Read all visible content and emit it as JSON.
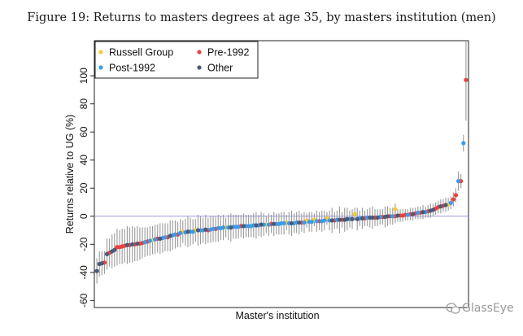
{
  "figure_title": "Figure 19: Returns to masters degrees at age 35, by masters institution (men)",
  "watermark": "GlassEye",
  "chart_data": {
    "type": "scatter",
    "title": "Figure 19: Returns to masters degrees at age 35, by masters institution (men)",
    "xlabel": "Master's institution",
    "ylabel": "Returns relative to UG (%)",
    "ylim": [
      -65,
      125
    ],
    "yticks": [
      "-60",
      "-40",
      "-20",
      "0",
      "20",
      "40",
      "60",
      "80",
      "100"
    ],
    "yticks_values": [
      -60,
      -40,
      -20,
      0,
      20,
      40,
      60,
      80,
      100
    ],
    "reference_line_y": 0,
    "grid": false,
    "legend_position": "top-left",
    "error_bars": true,
    "legend": [
      {
        "name": "Russell Group",
        "color": "#f5cc3c"
      },
      {
        "name": "Pre-1992",
        "color": "#e8413e"
      },
      {
        "name": "Post-1992",
        "color": "#3d9ae8"
      },
      {
        "name": "Other",
        "color": "#4a5a78"
      }
    ],
    "series": [
      {
        "name": "Russell Group",
        "color": "#f5cc3c",
        "points": [
          {
            "x": 8,
            "y": 8.5,
            "lo": 4,
            "hi": 13
          },
          {
            "x": 29,
            "y": 5,
            "lo": 1,
            "hi": 9
          },
          {
            "x": 45,
            "y": 1.5,
            "lo": -3,
            "hi": 6
          },
          {
            "x": 56,
            "y": -1.5,
            "lo": -6,
            "hi": 3
          },
          {
            "x": 61,
            "y": -2.5,
            "lo": -7,
            "hi": 2
          },
          {
            "x": 64,
            "y": -3,
            "lo": -8,
            "hi": 2
          },
          {
            "x": 72,
            "y": -4.5,
            "lo": -10,
            "hi": 1
          },
          {
            "x": 80,
            "y": -6,
            "lo": -12,
            "hi": 0
          },
          {
            "x": 96,
            "y": -8,
            "lo": -15,
            "hi": -1
          },
          {
            "x": 108,
            "y": -10,
            "lo": -18,
            "hi": -2
          },
          {
            "x": 113,
            "y": -11,
            "lo": -19,
            "hi": -3
          },
          {
            "x": 125,
            "y": -17,
            "lo": -27,
            "hi": -7
          }
        ]
      },
      {
        "name": "Pre-1992",
        "color": "#e8413e",
        "points": [
          {
            "x": 1,
            "y": 97,
            "lo": 68,
            "hi": 126
          },
          {
            "x": 3,
            "y": 25,
            "lo": 20,
            "hi": 30
          },
          {
            "x": 5,
            "y": 15,
            "lo": 10,
            "hi": 20
          },
          {
            "x": 6,
            "y": 12,
            "lo": 7,
            "hi": 17
          },
          {
            "x": 10,
            "y": 7.5,
            "lo": 3,
            "hi": 12
          },
          {
            "x": 12,
            "y": 6.5,
            "lo": 2,
            "hi": 11
          },
          {
            "x": 13,
            "y": 5.5,
            "lo": 1,
            "hi": 10
          },
          {
            "x": 16,
            "y": 3.5,
            "lo": -1,
            "hi": 8
          },
          {
            "x": 19,
            "y": 2.5,
            "lo": -2,
            "hi": 7
          },
          {
            "x": 21,
            "y": 2,
            "lo": -2,
            "hi": 6
          },
          {
            "x": 23,
            "y": 1.5,
            "lo": -3,
            "hi": 6
          },
          {
            "x": 25,
            "y": 1,
            "lo": -3,
            "hi": 5
          },
          {
            "x": 26,
            "y": 0.5,
            "lo": -4,
            "hi": 5
          },
          {
            "x": 27,
            "y": 0.5,
            "lo": -4,
            "hi": 5
          },
          {
            "x": 29,
            "y": 0,
            "lo": -5,
            "hi": 5
          },
          {
            "x": 31,
            "y": 0,
            "lo": -6,
            "hi": 6
          },
          {
            "x": 34,
            "y": -0.5,
            "lo": -6,
            "hi": 5
          },
          {
            "x": 37,
            "y": -1,
            "lo": -7,
            "hi": 5
          },
          {
            "x": 41,
            "y": -1.5,
            "lo": -7,
            "hi": 4
          },
          {
            "x": 50,
            "y": -2.5,
            "lo": -8,
            "hi": 3
          },
          {
            "x": 53,
            "y": -3,
            "lo": -9,
            "hi": 3
          },
          {
            "x": 59,
            "y": -3.5,
            "lo": -10,
            "hi": 3
          },
          {
            "x": 66,
            "y": -4.5,
            "lo": -11,
            "hi": 2
          },
          {
            "x": 78,
            "y": -5.5,
            "lo": -12,
            "hi": 1
          },
          {
            "x": 90,
            "y": -7,
            "lo": -15,
            "hi": 1
          },
          {
            "x": 100,
            "y": -9,
            "lo": -18,
            "hi": 0
          },
          {
            "x": 103,
            "y": -10,
            "lo": -19,
            "hi": -1
          },
          {
            "x": 115,
            "y": -13,
            "lo": -22,
            "hi": -4
          },
          {
            "x": 119,
            "y": -15,
            "lo": -25,
            "hi": -5
          },
          {
            "x": 123,
            "y": -16,
            "lo": -26,
            "hi": -6
          },
          {
            "x": 127,
            "y": -18,
            "lo": -28,
            "hi": -8
          },
          {
            "x": 129,
            "y": -19,
            "lo": -30,
            "hi": -8
          },
          {
            "x": 130,
            "y": -19.5,
            "lo": -31,
            "hi": -8
          },
          {
            "x": 132,
            "y": -20,
            "lo": -32,
            "hi": -8
          },
          {
            "x": 134,
            "y": -20.5,
            "lo": -33,
            "hi": -8
          },
          {
            "x": 136,
            "y": -21,
            "lo": -33,
            "hi": -9
          },
          {
            "x": 137,
            "y": -21.5,
            "lo": -34,
            "hi": -9
          },
          {
            "x": 138,
            "y": -22,
            "lo": -34,
            "hi": -10
          },
          {
            "x": 139,
            "y": -22,
            "lo": -35,
            "hi": -9
          },
          {
            "x": 142,
            "y": -26,
            "lo": -36,
            "hi": -16
          },
          {
            "x": 144,
            "y": -33,
            "lo": -41,
            "hi": -25
          }
        ]
      },
      {
        "name": "Post-1992",
        "color": "#3d9ae8",
        "points": [
          {
            "x": 2,
            "y": 52,
            "lo": 46,
            "hi": 58
          },
          {
            "x": 4,
            "y": 25,
            "lo": 18,
            "hi": 32
          },
          {
            "x": 7,
            "y": 9.5,
            "lo": 5,
            "hi": 14
          },
          {
            "x": 17,
            "y": 3,
            "lo": -1,
            "hi": 7
          },
          {
            "x": 20,
            "y": 2.5,
            "lo": -2,
            "hi": 7
          },
          {
            "x": 24,
            "y": 1,
            "lo": -3,
            "hi": 5
          },
          {
            "x": 30,
            "y": 0,
            "lo": -6,
            "hi": 6
          },
          {
            "x": 35,
            "y": -0.5,
            "lo": -6,
            "hi": 5
          },
          {
            "x": 40,
            "y": -1,
            "lo": -7,
            "hi": 5
          },
          {
            "x": 43,
            "y": -1.5,
            "lo": -7,
            "hi": 4
          },
          {
            "x": 47,
            "y": -2,
            "lo": -8,
            "hi": 4
          },
          {
            "x": 52,
            "y": -2.5,
            "lo": -9,
            "hi": 4
          },
          {
            "x": 55,
            "y": -3,
            "lo": -10,
            "hi": 4
          },
          {
            "x": 57,
            "y": -3,
            "lo": -10,
            "hi": 4
          },
          {
            "x": 58,
            "y": -3.5,
            "lo": -11,
            "hi": 4
          },
          {
            "x": 60,
            "y": -3.5,
            "lo": -11,
            "hi": 4
          },
          {
            "x": 62,
            "y": -4,
            "lo": -11,
            "hi": 3
          },
          {
            "x": 63,
            "y": -4,
            "lo": -11,
            "hi": 3
          },
          {
            "x": 65,
            "y": -4.5,
            "lo": -12,
            "hi": 3
          },
          {
            "x": 68,
            "y": -4.5,
            "lo": -12,
            "hi": 3
          },
          {
            "x": 69,
            "y": -5,
            "lo": -12,
            "hi": 2
          },
          {
            "x": 71,
            "y": -5,
            "lo": -13,
            "hi": 3
          },
          {
            "x": 73,
            "y": -5,
            "lo": -13,
            "hi": 3
          },
          {
            "x": 74,
            "y": -5,
            "lo": -13,
            "hi": 3
          },
          {
            "x": 75,
            "y": -5.5,
            "lo": -13,
            "hi": 2
          },
          {
            "x": 76,
            "y": -5.5,
            "lo": -13,
            "hi": 2
          },
          {
            "x": 79,
            "y": -6,
            "lo": -14,
            "hi": 2
          },
          {
            "x": 81,
            "y": -6,
            "lo": -14,
            "hi": 2
          },
          {
            "x": 83,
            "y": -6.5,
            "lo": -14,
            "hi": 1
          },
          {
            "x": 85,
            "y": -6.5,
            "lo": -15,
            "hi": 2
          },
          {
            "x": 86,
            "y": -7,
            "lo": -15,
            "hi": 1
          },
          {
            "x": 87,
            "y": -7,
            "lo": -15,
            "hi": 1
          },
          {
            "x": 88,
            "y": -7,
            "lo": -15,
            "hi": 1
          },
          {
            "x": 91,
            "y": -7.5,
            "lo": -16,
            "hi": 1
          },
          {
            "x": 92,
            "y": -7.5,
            "lo": -16,
            "hi": 1
          },
          {
            "x": 93,
            "y": -7.5,
            "lo": -16,
            "hi": 1
          },
          {
            "x": 95,
            "y": -8,
            "lo": -17,
            "hi": 1
          },
          {
            "x": 97,
            "y": -8,
            "lo": -17,
            "hi": 1
          },
          {
            "x": 98,
            "y": -8.5,
            "lo": -17,
            "hi": 0
          },
          {
            "x": 99,
            "y": -8.5,
            "lo": -18,
            "hi": 1
          },
          {
            "x": 101,
            "y": -9,
            "lo": -18,
            "hi": 0
          },
          {
            "x": 102,
            "y": -9.5,
            "lo": -19,
            "hi": 0
          },
          {
            "x": 105,
            "y": -10,
            "lo": -19,
            "hi": -1
          },
          {
            "x": 106,
            "y": -10,
            "lo": -20,
            "hi": 0
          },
          {
            "x": 109,
            "y": -11,
            "lo": -20,
            "hi": -2
          },
          {
            "x": 110,
            "y": -11,
            "lo": -21,
            "hi": -1
          },
          {
            "x": 112,
            "y": -11.5,
            "lo": -21,
            "hi": -2
          },
          {
            "x": 114,
            "y": -12,
            "lo": -22,
            "hi": -2
          },
          {
            "x": 116,
            "y": -13,
            "lo": -23,
            "hi": -3
          },
          {
            "x": 117,
            "y": -13.5,
            "lo": -24,
            "hi": -3
          },
          {
            "x": 120,
            "y": -15,
            "lo": -25,
            "hi": -5
          },
          {
            "x": 121,
            "y": -15.5,
            "lo": -26,
            "hi": -5
          },
          {
            "x": 124,
            "y": -16.5,
            "lo": -27,
            "hi": -6
          },
          {
            "x": 126,
            "y": -17.5,
            "lo": -28,
            "hi": -7
          },
          {
            "x": 128,
            "y": -18.5,
            "lo": -29,
            "hi": -8
          }
        ]
      },
      {
        "name": "Other",
        "color": "#4a5a78",
        "points": [
          {
            "x": 9,
            "y": 8,
            "lo": 3,
            "hi": 13
          },
          {
            "x": 11,
            "y": 7,
            "lo": 2,
            "hi": 12
          },
          {
            "x": 14,
            "y": 4.5,
            "lo": 0,
            "hi": 9
          },
          {
            "x": 15,
            "y": 4,
            "lo": -1,
            "hi": 9
          },
          {
            "x": 18,
            "y": 3,
            "lo": -2,
            "hi": 8
          },
          {
            "x": 22,
            "y": 1.5,
            "lo": -3,
            "hi": 6
          },
          {
            "x": 28,
            "y": 0.5,
            "lo": -4,
            "hi": 5
          },
          {
            "x": 32,
            "y": 0,
            "lo": -7,
            "hi": 7
          },
          {
            "x": 33,
            "y": -0.5,
            "lo": -8,
            "hi": 7
          },
          {
            "x": 36,
            "y": -1,
            "lo": -7,
            "hi": 5
          },
          {
            "x": 38,
            "y": -1,
            "lo": -9,
            "hi": 7
          },
          {
            "x": 39,
            "y": -1,
            "lo": -8,
            "hi": 6
          },
          {
            "x": 42,
            "y": -1.5,
            "lo": -9,
            "hi": 6
          },
          {
            "x": 44,
            "y": -2,
            "lo": -10,
            "hi": 6
          },
          {
            "x": 46,
            "y": -2,
            "lo": -9,
            "hi": 5
          },
          {
            "x": 48,
            "y": -2,
            "lo": -10,
            "hi": 6
          },
          {
            "x": 49,
            "y": -2.5,
            "lo": -11,
            "hi": 6
          },
          {
            "x": 51,
            "y": -2.5,
            "lo": -12,
            "hi": 7
          },
          {
            "x": 54,
            "y": -3,
            "lo": -12,
            "hi": 6
          },
          {
            "x": 67,
            "y": -4.5,
            "lo": -13,
            "hi": 4
          },
          {
            "x": 70,
            "y": -5,
            "lo": -14,
            "hi": 4
          },
          {
            "x": 77,
            "y": -5.5,
            "lo": -14,
            "hi": 3
          },
          {
            "x": 82,
            "y": -6,
            "lo": -15,
            "hi": 3
          },
          {
            "x": 84,
            "y": -6.5,
            "lo": -16,
            "hi": 3
          },
          {
            "x": 89,
            "y": -7,
            "lo": -16,
            "hi": 2
          },
          {
            "x": 94,
            "y": -8,
            "lo": -18,
            "hi": 2
          },
          {
            "x": 104,
            "y": -9.5,
            "lo": -20,
            "hi": 1
          },
          {
            "x": 107,
            "y": -10,
            "lo": -21,
            "hi": 1
          },
          {
            "x": 111,
            "y": -11,
            "lo": -22,
            "hi": 0
          },
          {
            "x": 118,
            "y": -14,
            "lo": -25,
            "hi": -3
          },
          {
            "x": 122,
            "y": -16,
            "lo": -27,
            "hi": -5
          },
          {
            "x": 131,
            "y": -19.5,
            "lo": -32,
            "hi": -7
          },
          {
            "x": 133,
            "y": -20,
            "lo": -33,
            "hi": -7
          },
          {
            "x": 135,
            "y": -20.5,
            "lo": -34,
            "hi": -7
          },
          {
            "x": 140,
            "y": -24,
            "lo": -36,
            "hi": -12
          },
          {
            "x": 141,
            "y": -25,
            "lo": -37,
            "hi": -13
          },
          {
            "x": 143,
            "y": -27,
            "lo": -38,
            "hi": -16
          },
          {
            "x": 145,
            "y": -33.5,
            "lo": -42,
            "hi": -25
          },
          {
            "x": 146,
            "y": -34,
            "lo": -43,
            "hi": -25
          },
          {
            "x": 147,
            "y": -39,
            "lo": -48,
            "hi": -30
          }
        ]
      }
    ]
  }
}
